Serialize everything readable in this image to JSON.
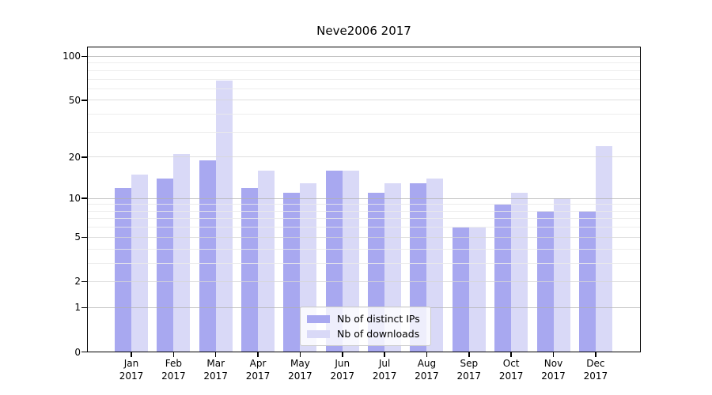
{
  "title": "Neve2006 2017",
  "chart_data": {
    "type": "bar",
    "title": "Neve2006 2017",
    "x_tick_months": [
      "Jan",
      "Feb",
      "Mar",
      "Apr",
      "May",
      "Jun",
      "Jul",
      "Aug",
      "Sep",
      "Oct",
      "Nov",
      "Dec"
    ],
    "x_tick_year": "2017",
    "series": [
      {
        "name": "Nb of distinct IPs",
        "color": "#a8a8f0",
        "values": [
          12,
          14,
          19,
          12,
          11,
          16,
          11,
          13,
          6,
          9,
          8,
          8
        ]
      },
      {
        "name": "Nb of downloads",
        "color": "#d9d9f7",
        "values": [
          15,
          21,
          68,
          16,
          13,
          16,
          13,
          14,
          6,
          11,
          10,
          24
        ]
      }
    ],
    "y_axis": {
      "scale": "log1p",
      "major_ticks": [
        0,
        1,
        2,
        5,
        10,
        20,
        50,
        100
      ],
      "power_gridlines": [
        1,
        10,
        100
      ],
      "mid_gridlines": [
        2,
        5,
        20,
        50
      ],
      "minor_gridlines": [
        3,
        4,
        6,
        7,
        8,
        9,
        30,
        40,
        60,
        70,
        80,
        90
      ],
      "ylim": [
        0,
        115
      ]
    },
    "legend": {
      "entries": [
        "Nb of distinct IPs",
        "Nb of downloads"
      ],
      "position": "lower-center"
    },
    "grid": true,
    "colors": {
      "distinct_ips_bar": "#a8a8f0",
      "downloads_bar": "#d9d9f7",
      "grid_power": "#b0b0b0",
      "grid_mid": "#d6d6d6",
      "grid_minor": "#eaeaea",
      "axis": "#000000",
      "legend_border": "#cccccc"
    }
  }
}
